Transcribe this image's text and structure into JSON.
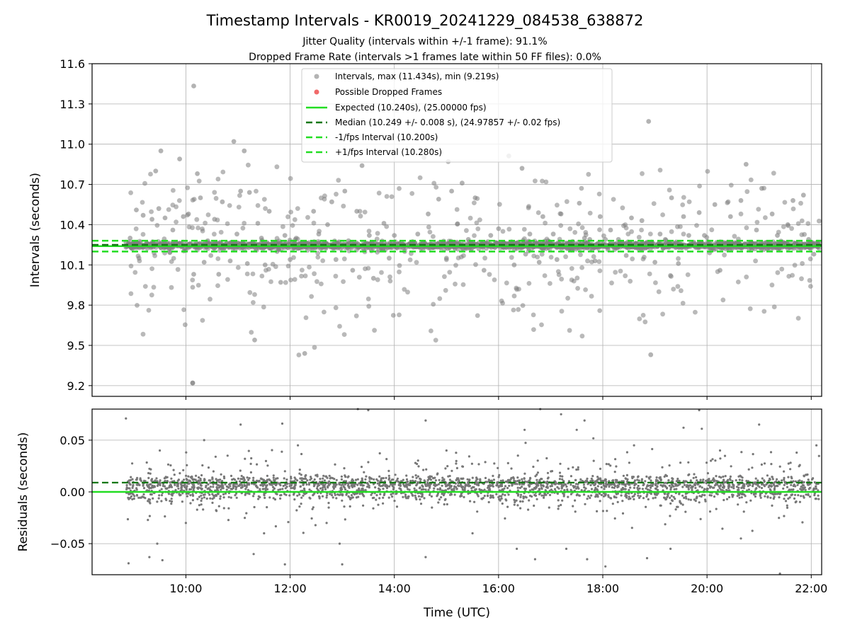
{
  "chart_data": {
    "type": "scatter",
    "title": "Timestamp Intervals - KR0019_20241229_084538_638872",
    "subtitle_lines": [
      "Jitter Quality (intervals within +/-1 frame): 91.1%",
      "Dropped Frame Rate (intervals >1 frames late within 50 FF files): 0.0%"
    ],
    "xlabel": "Time (UTC)",
    "x_range_hours": [
      8.2,
      22.2
    ],
    "x_ticks": [
      {
        "v": 10,
        "label": "10:00"
      },
      {
        "v": 12,
        "label": "12:00"
      },
      {
        "v": 14,
        "label": "14:00"
      },
      {
        "v": 16,
        "label": "16:00"
      },
      {
        "v": 18,
        "label": "18:00"
      },
      {
        "v": 20,
        "label": "20:00"
      },
      {
        "v": 22,
        "label": "22:00"
      }
    ],
    "top_panel": {
      "ylabel": "Intervals (seconds)",
      "ylim": [
        9.12,
        11.6
      ],
      "y_ticks": [
        {
          "v": 9.2,
          "label": "9.2"
        },
        {
          "v": 9.5,
          "label": "9.5"
        },
        {
          "v": 9.8,
          "label": "9.8"
        },
        {
          "v": 10.1,
          "label": "10.1"
        },
        {
          "v": 10.4,
          "label": "10.4"
        },
        {
          "v": 10.7,
          "label": "10.7"
        },
        {
          "v": 11.0,
          "label": "11.0"
        },
        {
          "v": 11.3,
          "label": "11.3"
        },
        {
          "v": 11.6,
          "label": "11.6"
        }
      ],
      "grid": true,
      "legend_position": "top-center",
      "series": [
        {
          "name": "Intervals, max (11.434s), min (9.219s)",
          "kind": "scatter",
          "color": "#808080",
          "max": 11.434,
          "min": 9.219,
          "center": 10.24,
          "points": [
            [
              8.85,
              10.27
            ],
            [
              8.93,
              10.3
            ],
            [
              9.05,
              10.51
            ],
            [
              9.1,
              10.15
            ],
            [
              9.18,
              10.47
            ],
            [
              9.25,
              10.26
            ],
            [
              9.35,
              10.44
            ],
            [
              9.42,
              10.8
            ],
            [
              9.48,
              10.52
            ],
            [
              9.52,
              10.95
            ],
            [
              9.6,
              10.45
            ],
            [
              9.68,
              10.22
            ],
            [
              9.75,
              10.36
            ],
            [
              9.82,
              10.26
            ],
            [
              9.88,
              10.89
            ],
            [
              9.95,
              10.46
            ],
            [
              10.05,
              10.48
            ],
            [
              10.13,
              9.22
            ],
            [
              10.15,
              10.03
            ],
            [
              10.22,
              10.78
            ],
            [
              10.28,
              10.6
            ],
            [
              10.35,
              10.12
            ],
            [
              10.42,
              10.28
            ],
            [
              10.48,
              10.17
            ],
            [
              10.55,
              10.44
            ],
            [
              10.63,
              10.03
            ],
            [
              10.7,
              10.57
            ],
            [
              10.78,
              10.26
            ],
            [
              10.85,
              10.13
            ],
            [
              10.92,
              11.02
            ],
            [
              10.98,
              10.33
            ],
            [
              11.05,
              10.65
            ],
            [
              11.12,
              10.95
            ],
            [
              11.18,
              10.11
            ],
            [
              11.22,
              10.64
            ],
            [
              11.28,
              10.27
            ],
            [
              11.32,
              9.54
            ],
            [
              11.38,
              10.41
            ],
            [
              11.45,
              10.3
            ],
            [
              11.52,
              10.1
            ],
            [
              11.6,
              10.5
            ],
            [
              11.68,
              10.26
            ],
            [
              11.75,
              10.2
            ],
            [
              11.82,
              9.97
            ],
            [
              11.9,
              10.32
            ],
            [
              12.0,
              10.14
            ],
            [
              12.1,
              10.29
            ],
            [
              12.28,
              9.44
            ],
            [
              12.35,
              10.24
            ],
            [
              12.45,
              10.5
            ],
            [
              12.55,
              10.33
            ],
            [
              12.65,
              10.24
            ],
            [
              12.72,
              10.4
            ],
            [
              12.8,
              10.57
            ],
            [
              12.88,
              10.14
            ],
            [
              12.95,
              10.24
            ],
            [
              13.05,
              10.65
            ],
            [
              13.12,
              10.28
            ],
            [
              13.2,
              10.06
            ],
            [
              13.28,
              10.5
            ],
            [
              13.38,
              10.84
            ],
            [
              13.45,
              10.26
            ],
            [
              13.52,
              10.32
            ],
            [
              13.6,
              10.0
            ],
            [
              13.7,
              10.21
            ],
            [
              13.8,
              10.41
            ],
            [
              13.9,
              10.15
            ],
            [
              14.0,
              10.32
            ],
            [
              14.2,
              10.2
            ],
            [
              14.45,
              10.33
            ],
            [
              14.55,
              10.27
            ],
            [
              14.65,
              10.48
            ],
            [
              14.75,
              10.23
            ],
            [
              14.85,
              10.59
            ],
            [
              15.0,
              10.15
            ],
            [
              15.1,
              10.65
            ],
            [
              15.2,
              10.27
            ],
            [
              15.3,
              10.71
            ],
            [
              15.42,
              10.29
            ],
            [
              15.55,
              10.6
            ],
            [
              15.62,
              10.22
            ],
            [
              15.72,
              10.06
            ],
            [
              15.85,
              10.32
            ],
            [
              16.0,
              10.37
            ],
            [
              16.15,
              10.23
            ],
            [
              16.3,
              10.1
            ],
            [
              16.38,
              10.27
            ],
            [
              16.45,
              10.82
            ],
            [
              16.52,
              10.18
            ],
            [
              16.6,
              10.33
            ],
            [
              16.7,
              10.26
            ],
            [
              16.78,
              10.12
            ],
            [
              16.85,
              10.46
            ],
            [
              16.95,
              10.28
            ],
            [
              17.05,
              10.33
            ],
            [
              17.12,
              10.14
            ],
            [
              17.2,
              10.48
            ],
            [
              17.3,
              10.25
            ],
            [
              17.4,
              10.21
            ],
            [
              17.55,
              10.56
            ],
            [
              17.65,
              10.3
            ],
            [
              17.75,
              10.29
            ],
            [
              17.85,
              10.13
            ],
            [
              17.95,
              10.46
            ],
            [
              18.05,
              10.29
            ],
            [
              18.15,
              10.36
            ],
            [
              18.3,
              10.29
            ],
            [
              18.45,
              10.17
            ],
            [
              18.55,
              10.45
            ],
            [
              18.65,
              10.26
            ],
            [
              18.75,
              10.43
            ],
            [
              18.85,
              10.27
            ],
            [
              18.88,
              11.17
            ],
            [
              18.92,
              9.43
            ],
            [
              19.0,
              10.12
            ],
            [
              19.1,
              10.33
            ],
            [
              19.2,
              10.29
            ],
            [
              19.32,
              10.6
            ],
            [
              19.45,
              10.11
            ],
            [
              19.55,
              10.46
            ],
            [
              19.65,
              10.32
            ],
            [
              19.75,
              10.25
            ],
            [
              19.85,
              10.49
            ],
            [
              19.95,
              10.32
            ],
            [
              20.05,
              10.19
            ],
            [
              20.15,
              10.55
            ],
            [
              20.25,
              10.06
            ],
            [
              20.35,
              10.26
            ],
            [
              20.45,
              10.46
            ],
            [
              20.55,
              10.23
            ],
            [
              20.65,
              10.58
            ],
            [
              20.75,
              10.85
            ],
            [
              20.85,
              10.27
            ],
            [
              20.95,
              10.36
            ],
            [
              21.05,
              10.67
            ],
            [
              21.15,
              10.22
            ],
            [
              21.25,
              10.48
            ],
            [
              21.35,
              10.32
            ],
            [
              21.45,
              10.27
            ],
            [
              21.55,
              10.4
            ],
            [
              21.65,
              10.58
            ],
            [
              21.75,
              10.26
            ],
            [
              21.85,
              10.62
            ],
            [
              21.95,
              10.29
            ],
            [
              22.05,
              10.18
            ],
            [
              22.15,
              10.27
            ]
          ]
        },
        {
          "name": "Possible Dropped Frames",
          "kind": "scatter",
          "color": "#f05a5a",
          "points": []
        },
        {
          "name": "Expected (10.240s), (25.00000 fps)",
          "kind": "hline",
          "value": 10.24,
          "style": "solid",
          "color": "#22dd22"
        },
        {
          "name": "Median (10.249 +/- 0.008 s), (24.97857 +/- 0.02 fps)",
          "kind": "hline",
          "value": 10.249,
          "style": "dashed",
          "color": "#117711"
        },
        {
          "name": "-1/fps Interval (10.200s)",
          "kind": "hline",
          "value": 10.2,
          "style": "dashed",
          "color": "#22dd22"
        },
        {
          "name": "+1/fps Interval (10.280s)",
          "kind": "hline",
          "value": 10.28,
          "style": "dashed",
          "color": "#22dd22"
        }
      ]
    },
    "bottom_panel": {
      "ylabel": "Residuals (seconds)",
      "ylim": [
        -0.08,
        0.08
      ],
      "y_ticks": [
        {
          "v": 0.05,
          "label": "0.05"
        },
        {
          "v": 0.0,
          "label": "0.00"
        },
        {
          "v": -0.05,
          "label": "−0.05"
        }
      ],
      "grid": true,
      "zero_line": 0.0,
      "median_offset": 0.009,
      "residual_points": [
        [
          8.85,
          0.071
        ],
        [
          8.9,
          -0.069
        ],
        [
          9.3,
          -0.063
        ],
        [
          9.45,
          -0.05
        ],
        [
          9.55,
          -0.066
        ],
        [
          9.5,
          0.04
        ],
        [
          10.0,
          -0.03
        ],
        [
          10.35,
          0.05
        ],
        [
          10.8,
          0.035
        ],
        [
          11.05,
          0.065
        ],
        [
          11.3,
          -0.06
        ],
        [
          11.5,
          -0.04
        ],
        [
          11.85,
          0.066
        ],
        [
          11.9,
          -0.07
        ],
        [
          12.15,
          0.045
        ],
        [
          12.7,
          -0.03
        ],
        [
          12.95,
          -0.05
        ],
        [
          13.0,
          -0.07
        ],
        [
          13.3,
          0.08
        ],
        [
          13.5,
          0.079
        ],
        [
          14.6,
          0.069
        ],
        [
          14.6,
          -0.063
        ],
        [
          15.0,
          0.04
        ],
        [
          15.5,
          -0.04
        ],
        [
          16.35,
          -0.055
        ],
        [
          16.5,
          0.06
        ],
        [
          16.7,
          -0.065
        ],
        [
          16.8,
          0.08
        ],
        [
          17.2,
          0.075
        ],
        [
          17.3,
          -0.055
        ],
        [
          17.5,
          0.06
        ],
        [
          17.65,
          0.069
        ],
        [
          17.7,
          -0.065
        ],
        [
          18.05,
          -0.072
        ],
        [
          18.6,
          0.045
        ],
        [
          18.85,
          -0.064
        ],
        [
          19.3,
          -0.055
        ],
        [
          19.55,
          0.062
        ],
        [
          19.85,
          0.079
        ],
        [
          19.9,
          0.061
        ],
        [
          20.25,
          0.04
        ],
        [
          20.65,
          -0.045
        ],
        [
          21.0,
          0.065
        ],
        [
          21.4,
          -0.079
        ],
        [
          21.7,
          -0.01
        ],
        [
          22.1,
          0.045
        ]
      ]
    }
  }
}
